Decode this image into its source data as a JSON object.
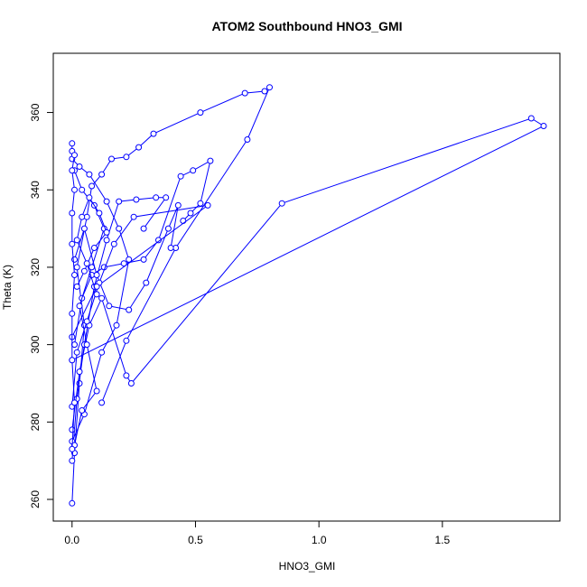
{
  "chart_data": {
    "type": "line",
    "title": "ATOM2 Southbound HNO3_GMI",
    "xlabel": "HNO3_GMI",
    "ylabel": "Theta (K)",
    "xlim": [
      -0.076,
      1.976
    ],
    "ylim": [
      254.4,
      375.3
    ],
    "xticks": [
      "0.0",
      "0.5",
      "1.0",
      "1.5"
    ],
    "xtick_values": [
      0.0,
      0.5,
      1.0,
      1.5
    ],
    "yticks": [
      "260",
      "280",
      "300",
      "320",
      "340",
      "360"
    ],
    "ytick_values": [
      260,
      280,
      300,
      320,
      340,
      360
    ],
    "grid": false,
    "legend": "none",
    "marker": "open-circle",
    "series_color": "#0000ff",
    "series": [
      {
        "x": [
          0.0,
          0.01,
          0.03,
          0.05,
          0.02,
          0.06,
          0.08,
          0.12,
          0.16,
          0.22,
          0.27,
          0.33,
          0.52,
          0.7,
          0.78,
          0.8,
          0.71,
          0.42,
          0.22,
          0.12
        ],
        "y": [
          259.0,
          272.0,
          290.0,
          305.0,
          320.0,
          333.0,
          341.0,
          344.0,
          348.0,
          348.5,
          351.0,
          354.5,
          360.0,
          365.0,
          365.5,
          366.5,
          353.0,
          325.0,
          301.0,
          285.0
        ]
      },
      {
        "x": [
          0.0,
          0.02,
          0.05,
          0.09,
          0.14,
          0.19,
          0.26,
          0.34,
          0.38,
          0.29
        ],
        "y": [
          270.0,
          286.0,
          300.0,
          315.0,
          327.0,
          337.0,
          337.5,
          338.0,
          338.0,
          330.0
        ]
      },
      {
        "x": [
          0.01,
          0.04,
          0.08,
          0.13,
          0.21,
          0.29,
          0.35,
          0.44,
          0.49,
          0.56,
          0.52,
          0.48,
          0.45
        ],
        "y": [
          300.0,
          312.0,
          318.0,
          320.0,
          321.0,
          322.0,
          327.0,
          343.5,
          345.0,
          347.5,
          336.5,
          334.0,
          332.0
        ]
      },
      {
        "x": [
          0.0,
          0.03,
          0.07,
          0.12,
          0.22,
          0.24,
          0.85,
          1.86,
          1.91,
          0.0
        ],
        "y": [
          278.0,
          293.0,
          305.0,
          312.0,
          292.0,
          290.0,
          336.5,
          358.5,
          356.5,
          296.0
        ]
      },
      {
        "x": [
          0.01,
          0.05,
          0.1,
          0.15,
          0.23,
          0.3,
          0.39,
          0.43,
          0.4
        ],
        "y": [
          322.0,
          330.0,
          318.0,
          310.0,
          309.0,
          316.0,
          330.0,
          336.0,
          325.0
        ]
      },
      {
        "x": [
          0.0,
          0.02,
          0.06,
          0.11,
          0.17,
          0.25,
          0.55,
          0.1,
          0.0
        ],
        "y": [
          284.0,
          298.0,
          306.0,
          316.0,
          326.0,
          333.0,
          336.0,
          315.0,
          302.0
        ]
      },
      {
        "x": [
          0.0,
          0.03,
          0.07,
          0.14,
          0.19,
          0.23,
          0.18,
          0.12,
          0.05,
          0.0
        ],
        "y": [
          348.0,
          346.0,
          344.0,
          337.0,
          330.0,
          322.0,
          305.0,
          298.0,
          282.0,
          275.0
        ]
      },
      {
        "x": [
          0.01,
          0.04,
          0.09,
          0.13,
          0.08,
          0.03,
          0.06,
          0.1,
          0.04,
          0.01
        ],
        "y": [
          345.0,
          340.0,
          336.0,
          330.0,
          320.0,
          310.0,
          300.0,
          288.0,
          283.0,
          274.0
        ]
      },
      {
        "x": [
          0.0,
          0.0,
          0.01,
          0.0,
          0.01,
          0.0,
          0.0,
          0.01,
          0.0,
          0.0,
          0.01,
          0.0
        ],
        "y": [
          352.0,
          350.0,
          349.0,
          345.0,
          340.0,
          334.0,
          326.0,
          318.0,
          308.0,
          296.0,
          285.0,
          273.0
        ]
      },
      {
        "x": [
          0.02,
          0.05,
          0.09,
          0.14,
          0.11,
          0.07,
          0.04,
          0.02,
          0.06,
          0.1
        ],
        "y": [
          315.0,
          319.0,
          325.0,
          329.0,
          334.0,
          338.0,
          333.0,
          327.0,
          321.0,
          313.0
        ]
      }
    ]
  }
}
